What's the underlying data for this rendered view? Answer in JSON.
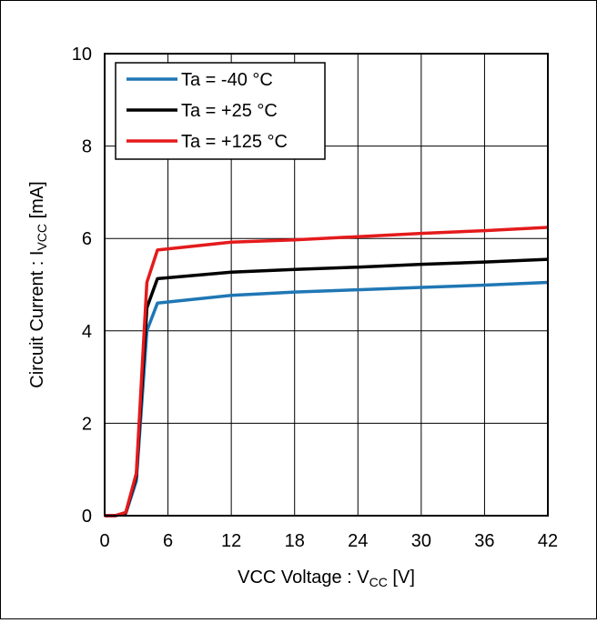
{
  "chart_data": {
    "type": "line",
    "xlabel": {
      "main": "VCC Voltage : V",
      "sub": "CC",
      "unit": " [V]"
    },
    "ylabel": {
      "main": "Circuit Current : I",
      "sub": "VCC",
      "unit": " [mA]"
    },
    "xlim": [
      0,
      42
    ],
    "ylim": [
      0,
      10
    ],
    "xticks": [
      0,
      6,
      12,
      18,
      24,
      30,
      36,
      42
    ],
    "yticks": [
      0,
      2,
      4,
      6,
      8,
      10
    ],
    "grid": true,
    "legend_position": "top-left",
    "series": [
      {
        "name": "Ta = -40 °C",
        "color": "#1f77b4",
        "x": [
          0,
          1,
          2,
          3,
          4,
          5,
          12,
          18,
          24,
          30,
          36,
          42
        ],
        "y": [
          0,
          0,
          0.05,
          0.75,
          4.0,
          4.6,
          4.77,
          4.84,
          4.89,
          4.94,
          4.99,
          5.05
        ]
      },
      {
        "name": "Ta = +25 °C",
        "color": "#000000",
        "x": [
          0,
          1,
          2,
          3,
          4,
          5,
          12,
          18,
          24,
          30,
          36,
          42
        ],
        "y": [
          0,
          0,
          0.06,
          0.85,
          4.5,
          5.13,
          5.27,
          5.33,
          5.38,
          5.44,
          5.49,
          5.55
        ]
      },
      {
        "name": "Ta = +125 °C",
        "color": "#e41a1c",
        "x": [
          0,
          1,
          2,
          3,
          4,
          5,
          12,
          18,
          24,
          30,
          36,
          42
        ],
        "y": [
          0,
          0,
          0.07,
          0.92,
          5.05,
          5.75,
          5.92,
          5.97,
          6.04,
          6.11,
          6.17,
          6.24
        ]
      }
    ]
  }
}
